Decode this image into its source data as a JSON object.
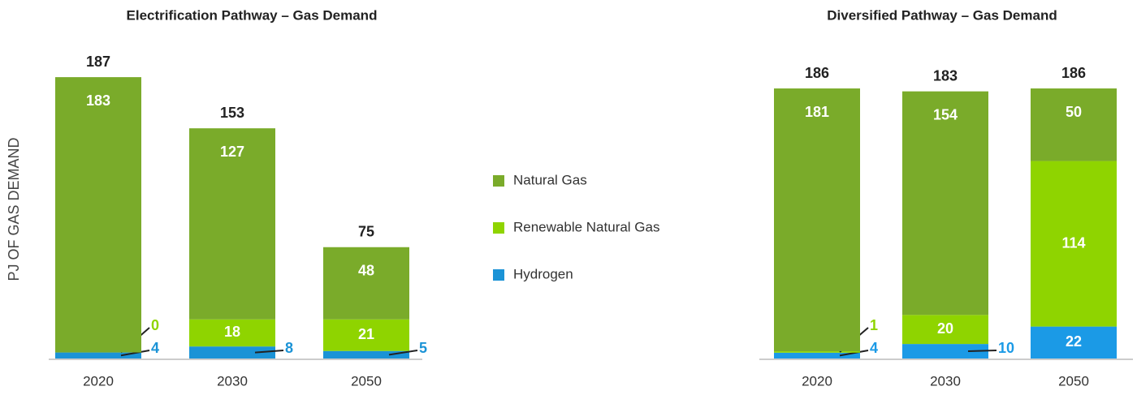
{
  "chart_data": [
    {
      "type": "stacked_bar",
      "title": "Electrification Pathway – Gas Demand",
      "y_label": "PJ OF GAS DEMAND",
      "categories": [
        "2020",
        "2030",
        "2050"
      ],
      "series": [
        {
          "name": "Natural Gas",
          "color": "#7aab2a",
          "values": [
            183,
            127,
            48
          ]
        },
        {
          "name": "Renewable Natural Gas",
          "color": "#8fd400",
          "values": [
            0,
            18,
            21
          ]
        },
        {
          "name": "Hydrogen",
          "color": "#1b93d6",
          "values": [
            4,
            8,
            5
          ]
        }
      ],
      "totals": [
        187,
        153,
        75
      ],
      "ylim": [
        0,
        200
      ]
    },
    {
      "type": "stacked_bar",
      "title": "Diversified Pathway – Gas Demand",
      "categories": [
        "2020",
        "2030",
        "2050"
      ],
      "series": [
        {
          "color": "#7aab2a",
          "values": [
            181,
            154,
            50
          ]
        },
        {
          "color": "#8fd400",
          "values": [
            1,
            20,
            114
          ]
        },
        {
          "color": "#1b9ae6",
          "values": [
            4,
            10,
            22
          ]
        }
      ],
      "totals": [
        186,
        183,
        186
      ],
      "ylim": [
        0,
        200
      ]
    }
  ]
}
